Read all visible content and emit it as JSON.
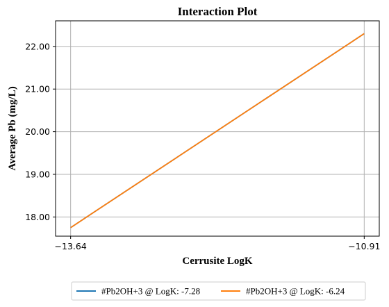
{
  "chart_data": {
    "type": "line",
    "title": "Interaction Plot",
    "xlabel": "Cerrusite LogK",
    "ylabel": "Average Pb (mg/L)",
    "x": [
      -13.64,
      -10.91
    ],
    "x_tick_labels": [
      "−13.64",
      "−10.91"
    ],
    "y_ticks": [
      18.0,
      19.0,
      20.0,
      21.0,
      22.0
    ],
    "y_tick_labels": [
      "18.00",
      "19.00",
      "20.00",
      "21.00",
      "22.00"
    ],
    "xlim": [
      -13.78,
      -10.77
    ],
    "ylim": [
      17.55,
      22.6
    ],
    "grid": true,
    "legend_position": "bottom-center",
    "series": [
      {
        "name": "#Pb2OH+3 @ LogK: -7.28",
        "color": "#1f77b4",
        "values": [
          17.75,
          22.3
        ]
      },
      {
        "name": "#Pb2OH+3 @ LogK: -6.24",
        "color": "#ff7f0e",
        "values": [
          17.75,
          22.3
        ]
      }
    ]
  }
}
